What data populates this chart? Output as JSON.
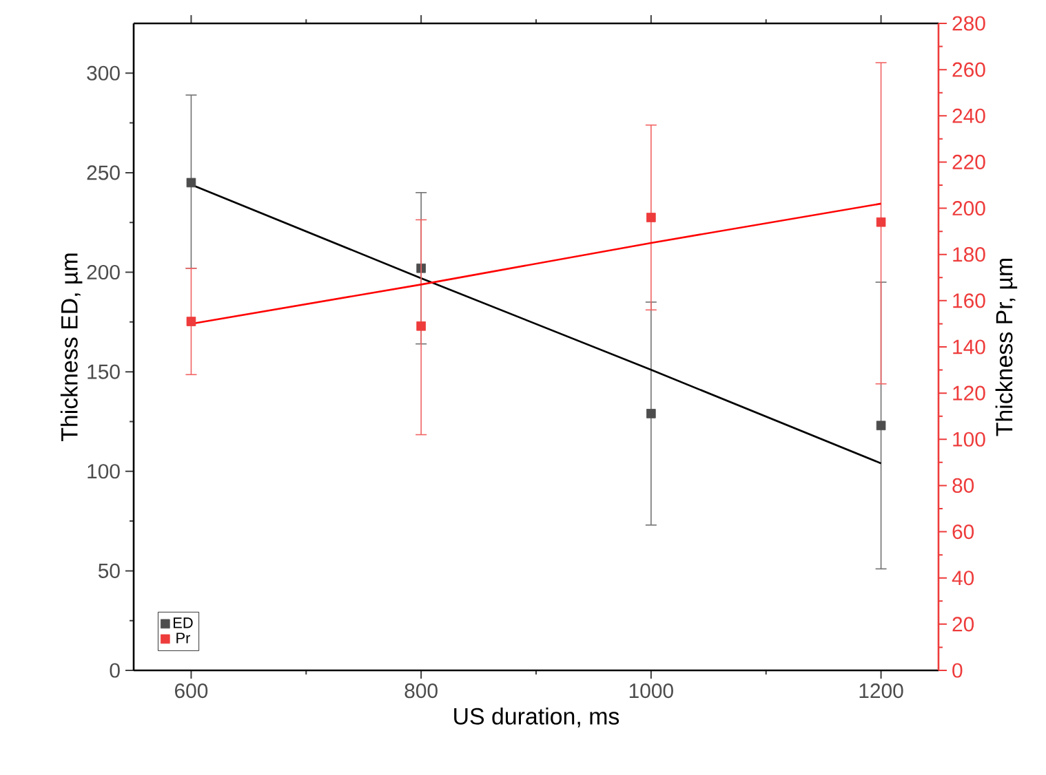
{
  "chart_data": {
    "type": "scatter",
    "xlabel": "US duration, ms",
    "ylabel": "Thickness ED, µm",
    "y2label": "Thickness Pr, µm",
    "x": [
      600,
      800,
      1000,
      1200
    ],
    "series": [
      {
        "name": "ED",
        "color": "#4d4d4d",
        "values": [
          245,
          202,
          129,
          123
        ],
        "errors": [
          [
            202,
            289
          ],
          [
            164,
            240
          ],
          [
            73,
            185
          ],
          [
            51,
            195
          ]
        ]
      },
      {
        "name": "Pr",
        "axis": "y2",
        "color": "#ee3b3b",
        "values": [
          151,
          149,
          196,
          194
        ],
        "errors": [
          [
            128,
            174
          ],
          [
            102,
            195
          ],
          [
            156,
            236
          ],
          [
            124,
            263
          ]
        ]
      },
      {
        "type": "line",
        "values": [
          244,
          197,
          151,
          104
        ],
        "color": "#000000",
        "marker": "none"
      },
      {
        "type": "line",
        "axis": "y2",
        "values": [
          150,
          167,
          185,
          202
        ],
        "color": "#ff0000",
        "marker": "none"
      }
    ],
    "xlim": [
      550,
      1250
    ],
    "ylim": [
      0,
      325
    ],
    "y2lim": [
      0,
      280
    ],
    "xticks": [
      600,
      800,
      1000,
      1200
    ],
    "yticks": [
      0,
      50,
      100,
      150,
      200,
      250,
      300
    ],
    "y2ticks": [
      0,
      20,
      40,
      60,
      80,
      100,
      120,
      140,
      160,
      180,
      200,
      220,
      240,
      260,
      280
    ],
    "legend": "bottom left",
    "marker": "square"
  }
}
